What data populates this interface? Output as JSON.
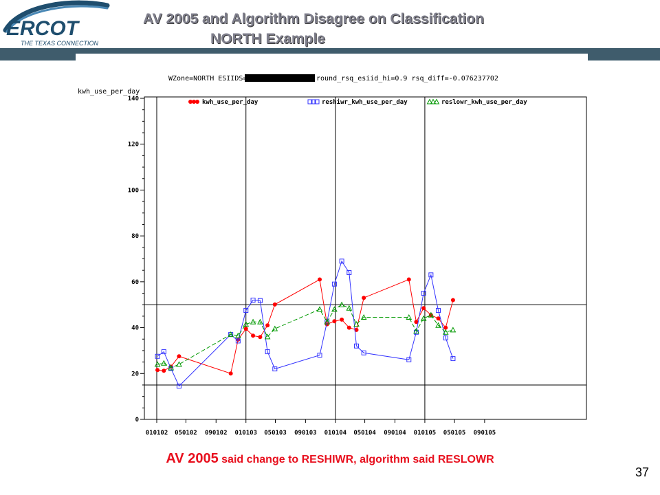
{
  "header": {
    "logo_text": "ERCOT",
    "logo_tagline": "THE TEXAS CONNECTION",
    "title_line1": "AV 2005 and Algorithm Disagree on Classification",
    "title_line2": "NORTH Example"
  },
  "caption": {
    "lead": "AV 2005",
    "rest": " said change to RESHIWR, algorithm said RESLOWR"
  },
  "slide_number": "37",
  "colors": {
    "header_bar": "#3f5c6c",
    "title_text": "#7f7f8c",
    "caption": "#e8101e",
    "series_kwh": "#ff0000",
    "series_reshiwr": "#3333ff",
    "series_reslowr": "#009900"
  },
  "chart_data": {
    "type": "line",
    "title_prefix": "WZone=NORTH ESIIDS=",
    "title_suffix": "round_rsq_esiid_hi=0.9 rsq_diff=-0.076237702",
    "ylabel": "kwh_use_per_day",
    "xlabel": "",
    "ylim": [
      0,
      140
    ],
    "yticks": [
      0,
      20,
      40,
      60,
      80,
      100,
      120,
      140
    ],
    "xlim": [
      "2001-01-02",
      "2005-09-01"
    ],
    "xtick_labels": [
      {
        "label": "010102",
        "date": "2001-01-02"
      },
      {
        "label": "050102",
        "date": "2001-05-01"
      },
      {
        "label": "090102",
        "date": "2001-09-01"
      },
      {
        "label": "010103",
        "date": "2002-01-01"
      },
      {
        "label": "050103",
        "date": "2002-05-01"
      },
      {
        "label": "090103",
        "date": "2002-09-01"
      },
      {
        "label": "010104",
        "date": "2003-01-01"
      },
      {
        "label": "050104",
        "date": "2003-05-01"
      },
      {
        "label": "090104",
        "date": "2003-09-01"
      },
      {
        "label": "010105",
        "date": "2004-01-01"
      },
      {
        "label": "050105",
        "date": "2004-05-01"
      },
      {
        "label": "090105",
        "date": "2004-09-01"
      }
    ],
    "vertical_reference_lines": [
      "2001-01-02",
      "2002-01-01",
      "2003-01-01",
      "2004-01-01"
    ],
    "horizontal_reference_lines": [
      50,
      15
    ],
    "grid": false,
    "legend_position": "top",
    "series": [
      {
        "name": "kwh_use_per_day",
        "color": "#ff0000",
        "marker": "dot",
        "dash": "solid",
        "points": [
          [
            "2001-01-05",
            21.5
          ],
          [
            "2001-01-31",
            21.2
          ],
          [
            "2001-03-01",
            23.0
          ],
          [
            "2001-04-03",
            27.5
          ],
          [
            "2001-10-31",
            20.0
          ],
          [
            "2001-11-30",
            34.8
          ],
          [
            "2002-01-01",
            39.5
          ],
          [
            "2002-01-30",
            36.5
          ],
          [
            "2002-02-28",
            35.9
          ],
          [
            "2002-03-30",
            41.0
          ],
          [
            "2002-04-29",
            50.1
          ],
          [
            "2002-10-29",
            61.0
          ],
          [
            "2002-11-28",
            41.5
          ],
          [
            "2002-12-28",
            42.8
          ],
          [
            "2003-01-27",
            43.5
          ],
          [
            "2003-02-26",
            40.0
          ],
          [
            "2003-03-28",
            39.0
          ],
          [
            "2003-04-27",
            53.0
          ],
          [
            "2003-10-28",
            61.0
          ],
          [
            "2003-11-27",
            42.5
          ],
          [
            "2003-12-27",
            48.5
          ],
          [
            "2004-01-26",
            45.5
          ],
          [
            "2004-02-25",
            44.0
          ],
          [
            "2004-03-26",
            40.0
          ],
          [
            "2004-04-25",
            52.0
          ]
        ]
      },
      {
        "name": "reshiwr_kwh_use_per_day",
        "color": "#3333ff",
        "marker": "square",
        "dash": "solid",
        "points": [
          [
            "2001-01-05",
            27.5
          ],
          [
            "2001-01-31",
            29.5
          ],
          [
            "2001-03-01",
            22.2
          ],
          [
            "2001-04-03",
            14.5
          ],
          [
            "2001-10-31",
            37.0
          ],
          [
            "2001-11-30",
            34.2
          ],
          [
            "2002-01-01",
            47.5
          ],
          [
            "2002-01-30",
            52.0
          ],
          [
            "2002-02-28",
            51.8
          ],
          [
            "2002-03-30",
            29.5
          ],
          [
            "2002-04-29",
            22.0
          ],
          [
            "2002-10-29",
            28.0
          ],
          [
            "2002-11-28",
            42.5
          ],
          [
            "2002-12-28",
            59.0
          ],
          [
            "2003-01-27",
            69.0
          ],
          [
            "2003-02-26",
            64.0
          ],
          [
            "2003-03-28",
            32.0
          ],
          [
            "2003-04-27",
            29.0
          ],
          [
            "2003-10-28",
            26.0
          ],
          [
            "2003-11-27",
            38.0
          ],
          [
            "2003-12-27",
            55.0
          ],
          [
            "2004-01-26",
            63.0
          ],
          [
            "2004-02-25",
            47.5
          ],
          [
            "2004-03-26",
            35.5
          ],
          [
            "2004-04-25",
            26.5
          ]
        ]
      },
      {
        "name": "reslowr_kwh_use_per_day",
        "color": "#009900",
        "marker": "triangle",
        "dash": "dashed",
        "points": [
          [
            "2001-01-05",
            24.0
          ],
          [
            "2001-01-31",
            24.5
          ],
          [
            "2001-03-01",
            22.5
          ],
          [
            "2001-04-03",
            24.0
          ],
          [
            "2001-10-31",
            37.0
          ],
          [
            "2001-11-30",
            36.5
          ],
          [
            "2002-01-01",
            41.5
          ],
          [
            "2002-01-30",
            42.5
          ],
          [
            "2002-02-28",
            42.5
          ],
          [
            "2002-03-30",
            36.0
          ],
          [
            "2002-04-29",
            39.5
          ],
          [
            "2002-10-29",
            48.0
          ],
          [
            "2002-11-28",
            42.5
          ],
          [
            "2002-12-28",
            48.0
          ],
          [
            "2003-01-27",
            50.0
          ],
          [
            "2003-02-26",
            48.5
          ],
          [
            "2003-03-28",
            41.5
          ],
          [
            "2003-04-27",
            44.5
          ],
          [
            "2003-10-28",
            44.5
          ],
          [
            "2003-11-27",
            38.5
          ],
          [
            "2003-12-27",
            44.0
          ],
          [
            "2004-01-26",
            45.5
          ],
          [
            "2004-02-25",
            41.0
          ],
          [
            "2004-03-26",
            38.0
          ],
          [
            "2004-04-25",
            39.0
          ]
        ]
      }
    ]
  }
}
